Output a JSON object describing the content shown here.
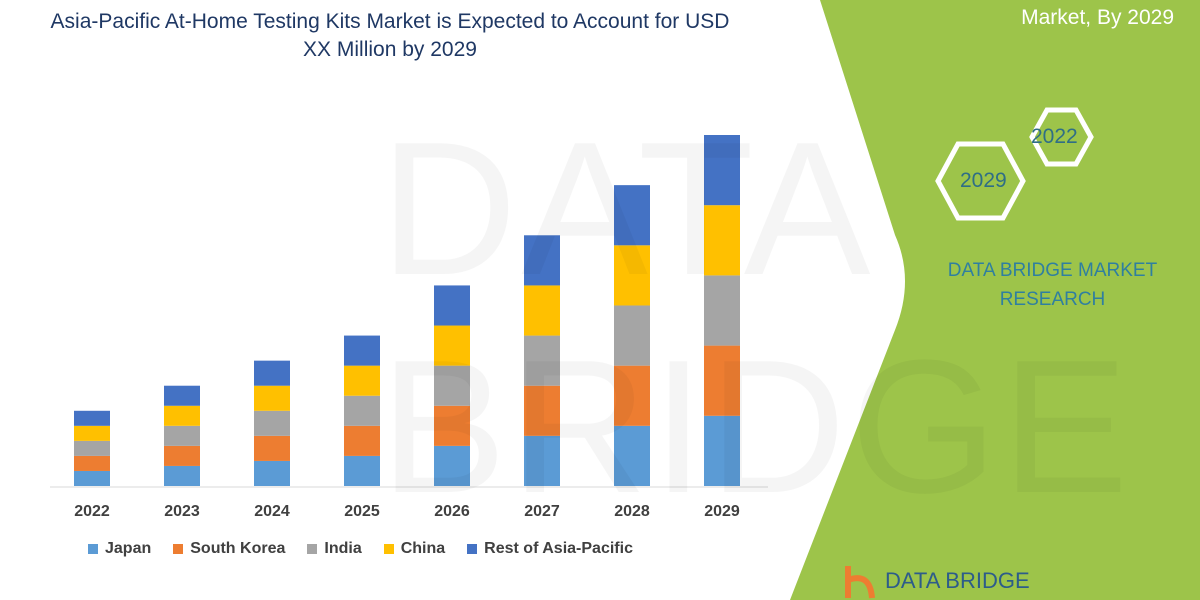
{
  "title": "Asia-Pacific At-Home Testing Kits Market is Expected to Account for USD XX Million by 2029",
  "side_panel": {
    "title_visible": "Market, By 2029",
    "hex_years": [
      "2022",
      "2029"
    ],
    "brand": "DATA BRIDGE MARKET RESEARCH",
    "logo_text": "DATA BRIDGE",
    "color": "#9dc44a"
  },
  "watermark": "DATA BRIDGE",
  "chart_data": {
    "type": "bar",
    "stacked": true,
    "categories": [
      "2022",
      "2023",
      "2024",
      "2025",
      "2026",
      "2027",
      "2028",
      "2029"
    ],
    "series": [
      {
        "name": "Japan",
        "color": "#5b9bd5",
        "values": [
          15,
          20,
          25,
          30,
          40,
          50,
          60,
          70
        ]
      },
      {
        "name": "South Korea",
        "color": "#ed7d31",
        "values": [
          15,
          20,
          25,
          30,
          40,
          50,
          60,
          70
        ]
      },
      {
        "name": "India",
        "color": "#a5a5a5",
        "values": [
          15,
          20,
          25,
          30,
          40,
          50,
          60,
          70
        ]
      },
      {
        "name": "China",
        "color": "#ffc000",
        "values": [
          15,
          20,
          25,
          30,
          40,
          50,
          60,
          70
        ]
      },
      {
        "name": "Rest of Asia-Pacific",
        "color": "#4472c4",
        "values": [
          15,
          20,
          25,
          30,
          40,
          50,
          60,
          70
        ]
      }
    ],
    "ylim": [
      0,
      350
    ],
    "y_axis_shown": false,
    "grid": false,
    "legend": "bottom"
  }
}
